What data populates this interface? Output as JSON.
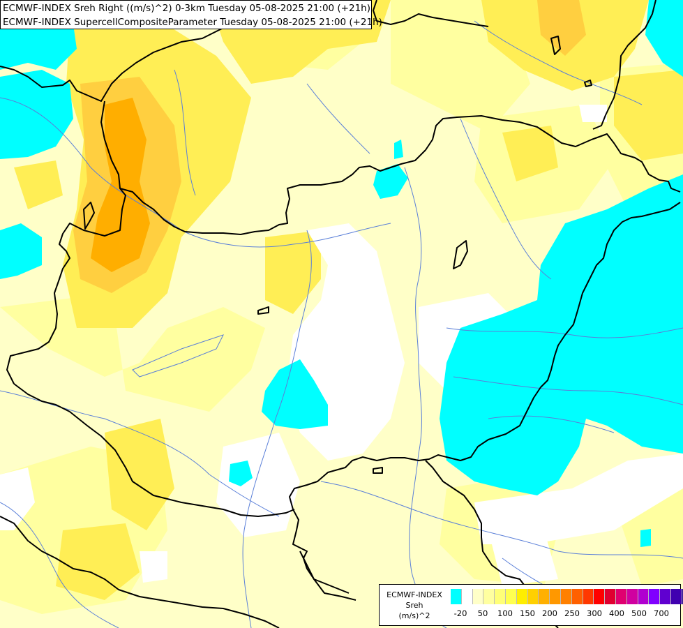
{
  "header": {
    "line1": "ECMWF-INDEX Sreh Right ((m/s)^2) 0-3km Tuesday 05-08-2025 21:00 (+21h)",
    "line2": "ECMWF-INDEX SupercellCompositeParameter Tuesday 05-08-2025 21:00 (+21h)"
  },
  "legend": {
    "label_line1": "ECMWF-INDEX",
    "label_line2": "Sreh",
    "label_line3": "(m/s)^2",
    "colors": [
      "#00ffff",
      "#ffffff",
      "#ffffc8",
      "#ffffa0",
      "#ffff78",
      "#ffff50",
      "#ffee00",
      "#ffd000",
      "#ffb000",
      "#ff9800",
      "#ff8000",
      "#ff6000",
      "#ff3800",
      "#ff0000",
      "#e00030",
      "#e00070",
      "#d000a0",
      "#b000d0",
      "#8000ff",
      "#6000d0",
      "#4000b0",
      "#200090"
    ],
    "ticks": [
      "-20",
      "50",
      "100",
      "150",
      "200",
      "250",
      "300",
      "400",
      "500",
      "700"
    ]
  },
  "map": {
    "colors": {
      "background": "#ffffc8",
      "light_yellow": "#ffffa0",
      "yellow": "#ffee55",
      "orange_light": "#ffcf40",
      "orange": "#ffae00",
      "cyan": "#00ffff",
      "white": "#ffffff",
      "border": "#000000",
      "river": "#5a7fd8"
    }
  }
}
